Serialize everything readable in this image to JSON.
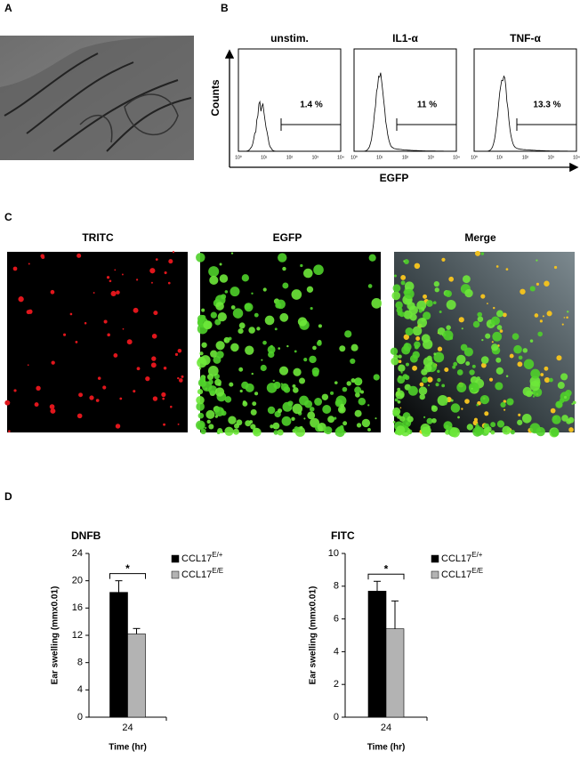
{
  "panel_labels": [
    "A",
    "B",
    "C",
    "D"
  ],
  "flow": {
    "y_label": "Counts",
    "x_label": "EGFP",
    "plots": [
      {
        "title": "unstim.",
        "gate": "1.4 %"
      },
      {
        "title": "IL1-α",
        "gate": "11 %"
      },
      {
        "title": "TNF-α",
        "gate": "13.3 %"
      }
    ],
    "x_tick_labels": [
      "10⁰",
      "10¹",
      "10²",
      "10³",
      "10⁴"
    ]
  },
  "microscopy": {
    "channels": [
      "TRITC",
      "EGFP",
      "Merge"
    ]
  },
  "chart_data": [
    {
      "type": "bar",
      "title": "DNFB",
      "y_label": "Ear swelling (mmx0.01)",
      "x_label": "Time (hr)",
      "categories": [
        "24"
      ],
      "series": [
        {
          "name": "CCL17E/+",
          "color": "#000000",
          "values": [
            18.3
          ],
          "errors": [
            1.7
          ]
        },
        {
          "name": "CCL17E/E",
          "color": "#b3b3b3",
          "values": [
            12.2
          ],
          "errors": [
            0.8
          ]
        }
      ],
      "ylim": [
        0,
        24
      ],
      "yticks": [
        0,
        4,
        8,
        12,
        16,
        20,
        24
      ],
      "annotation": "*"
    },
    {
      "type": "bar",
      "title": "FITC",
      "y_label": "Ear swelling (mmx0.01)",
      "x_label": "Time (hr)",
      "categories": [
        "24"
      ],
      "series": [
        {
          "name": "CCL17E/+",
          "color": "#000000",
          "values": [
            7.7
          ],
          "errors": [
            0.6
          ]
        },
        {
          "name": "CCL17E/E",
          "color": "#b3b3b3",
          "values": [
            5.4
          ],
          "errors": [
            1.7
          ]
        }
      ],
      "ylim": [
        0,
        10
      ],
      "yticks": [
        0,
        2,
        4,
        6,
        8,
        10
      ],
      "annotation": "*"
    }
  ]
}
